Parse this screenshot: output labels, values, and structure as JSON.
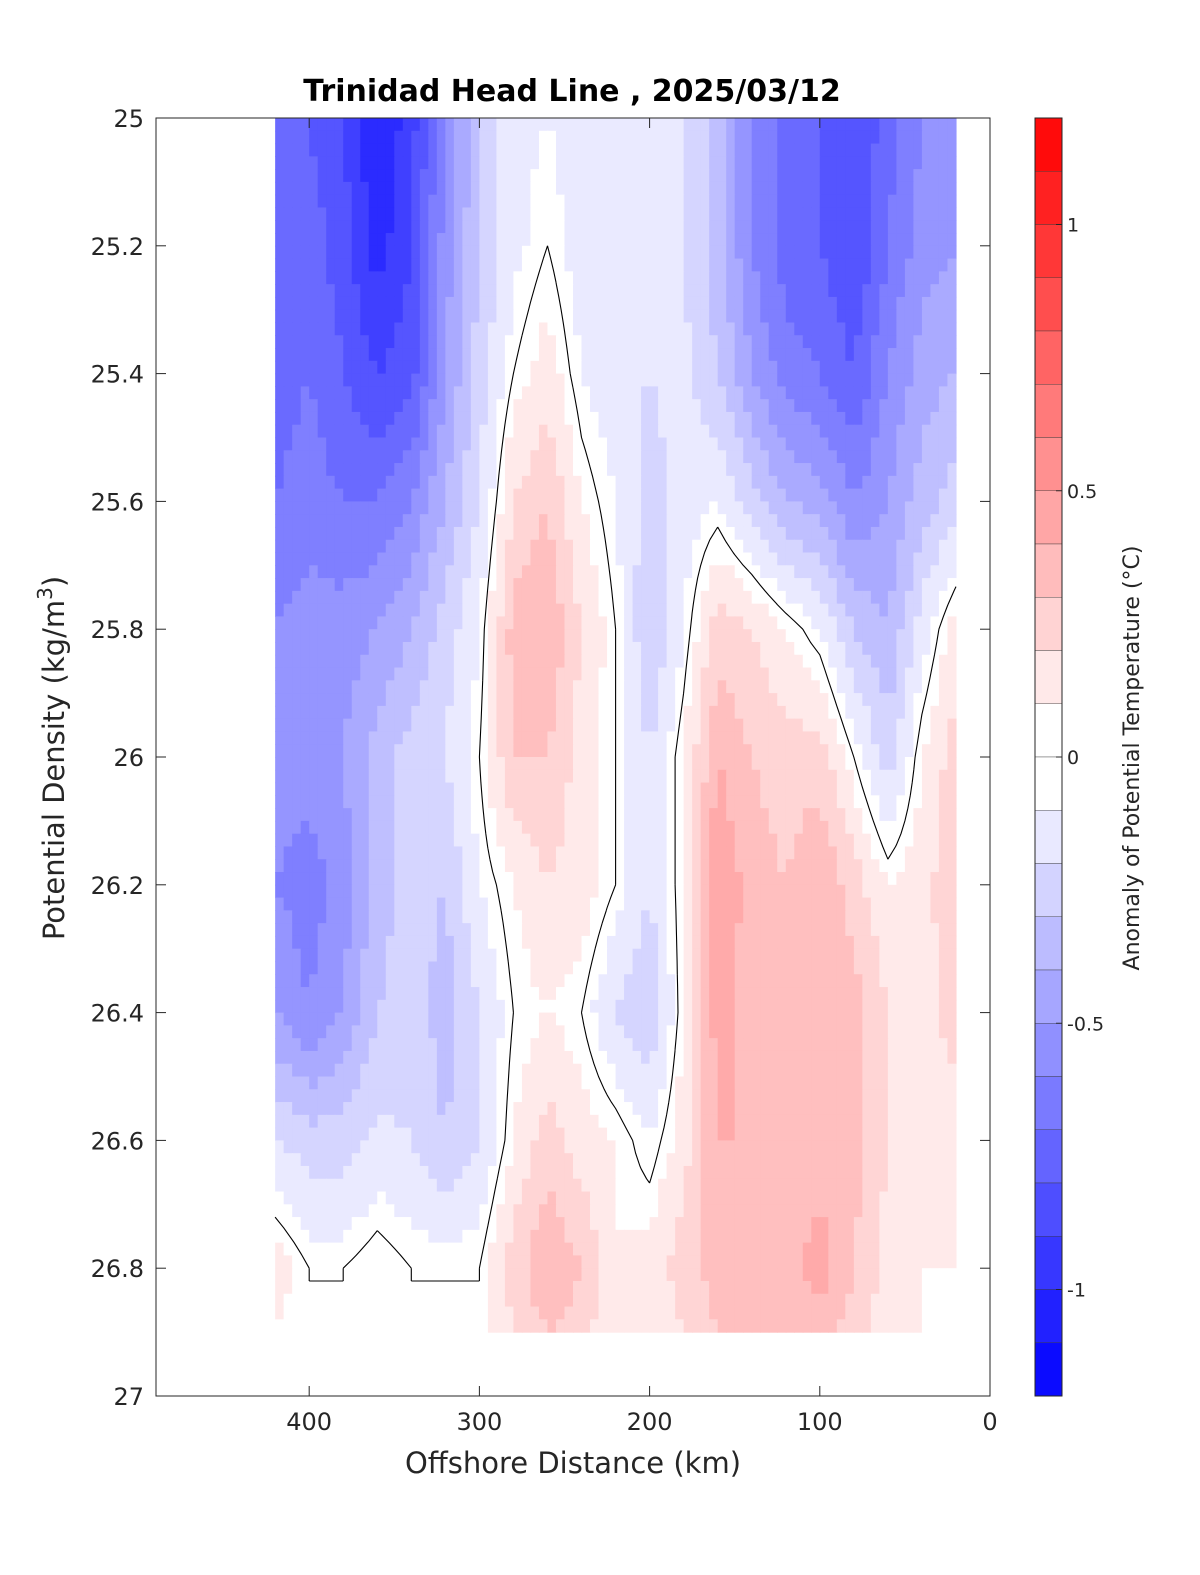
{
  "chart_data": {
    "type": "heatmap",
    "subtype": "filled-contour",
    "title": "Trinidad Head Line , 2025/03/12",
    "xlabel": "Offshore Distance (km)",
    "ylabel_main": "Potential Density (kg/m",
    "ylabel_sup": "3",
    "ylabel_close": ")",
    "xlim": [
      490,
      0
    ],
    "x_reversed": true,
    "xticks": [
      400,
      300,
      200,
      100,
      0
    ],
    "ylim": [
      25,
      27
    ],
    "y_reversed": true,
    "yticks": [
      "25",
      "25.2",
      "25.4",
      "25.6",
      "25.8",
      "26",
      "26.2",
      "26.4",
      "26.6",
      "26.8",
      "27"
    ],
    "data_extent": {
      "x": [
        420,
        20
      ],
      "y": [
        25,
        26.9
      ]
    },
    "zero_contour_color": "#000000",
    "colorbar": {
      "label": "Anomaly of Potential Temperature (°C)",
      "range": [
        -1.2,
        1.2
      ],
      "step": 0.1,
      "ticks": [
        {
          "value": 1,
          "label": "1"
        },
        {
          "value": 0.5,
          "label": "0.5"
        },
        {
          "value": 0,
          "label": "0"
        },
        {
          "value": -0.5,
          "label": "-0.5"
        },
        {
          "value": -1,
          "label": "-1"
        }
      ],
      "cold_color": "#0000ff",
      "warm_color": "#ff0000",
      "neutral_color": "#ffffff"
    },
    "grid_x": [
      420,
      400,
      380,
      360,
      340,
      320,
      300,
      280,
      260,
      240,
      220,
      200,
      180,
      160,
      140,
      120,
      100,
      80,
      60,
      40,
      20
    ],
    "grid_y": [
      25.0,
      25.2,
      25.4,
      25.6,
      25.8,
      26.0,
      26.2,
      26.4,
      26.6,
      26.8,
      26.9
    ],
    "values": [
      [
        -0.75,
        -0.75,
        -0.85,
        -1.05,
        -0.9,
        -0.55,
        -0.25,
        -0.08,
        -0.05,
        -0.1,
        -0.15,
        -0.15,
        -0.15,
        -0.3,
        -0.55,
        -0.7,
        -0.75,
        -0.85,
        -0.7,
        -0.55,
        -0.5
      ],
      [
        -0.75,
        -0.7,
        -0.8,
        -1.0,
        -0.85,
        -0.5,
        -0.25,
        -0.08,
        0.0,
        -0.1,
        -0.15,
        -0.15,
        -0.15,
        -0.3,
        -0.55,
        -0.7,
        -0.75,
        -0.85,
        -0.65,
        -0.5,
        -0.45
      ],
      [
        -0.7,
        -0.65,
        -0.75,
        -0.85,
        -0.8,
        -0.45,
        -0.2,
        0.0,
        0.1,
        -0.05,
        -0.12,
        -0.15,
        -0.12,
        -0.25,
        -0.45,
        -0.6,
        -0.65,
        -0.75,
        -0.55,
        -0.4,
        -0.35
      ],
      [
        -0.65,
        -0.6,
        -0.65,
        -0.65,
        -0.55,
        -0.35,
        -0.15,
        0.15,
        0.25,
        0.05,
        -0.05,
        -0.2,
        -0.1,
        -0.05,
        -0.2,
        -0.35,
        -0.4,
        -0.55,
        -0.45,
        -0.3,
        -0.2
      ],
      [
        -0.55,
        -0.5,
        -0.5,
        -0.45,
        -0.35,
        -0.2,
        -0.05,
        0.3,
        0.35,
        0.15,
        0.0,
        -0.25,
        -0.05,
        0.2,
        0.15,
        0.05,
        -0.05,
        -0.25,
        -0.35,
        -0.1,
        0.1
      ],
      [
        -0.5,
        -0.5,
        -0.45,
        -0.3,
        -0.2,
        -0.15,
        0.0,
        0.25,
        0.25,
        0.1,
        0.0,
        -0.15,
        0.05,
        0.35,
        0.25,
        0.2,
        0.2,
        0.0,
        -0.2,
        0.05,
        0.2
      ],
      [
        -0.55,
        -0.6,
        -0.5,
        -0.3,
        -0.2,
        -0.25,
        -0.05,
        0.05,
        0.15,
        0.1,
        0.0,
        -0.15,
        0.05,
        0.45,
        0.3,
        0.25,
        0.35,
        0.2,
        0.05,
        0.1,
        0.25
      ],
      [
        -0.45,
        -0.55,
        -0.45,
        -0.25,
        -0.2,
        -0.3,
        -0.15,
        0.0,
        0.05,
        0.0,
        -0.15,
        -0.25,
        0.05,
        0.4,
        0.3,
        0.25,
        0.35,
        0.3,
        0.15,
        0.1,
        0.2
      ],
      [
        -0.15,
        -0.2,
        -0.2,
        -0.12,
        -0.15,
        -0.25,
        -0.15,
        0.05,
        0.2,
        0.1,
        0.05,
        -0.05,
        0.1,
        0.35,
        0.35,
        0.3,
        0.3,
        0.3,
        0.15,
        0.05,
        0.1
      ],
      [
        0.1,
        0.0,
        0.0,
        0.05,
        0.0,
        0.0,
        0.0,
        0.2,
        0.35,
        0.25,
        0.05,
        0.1,
        0.2,
        0.3,
        0.35,
        0.3,
        0.4,
        0.25,
        0.1,
        0.05,
        0.05
      ],
      [
        0.05,
        0.0,
        0.0,
        0.0,
        0.0,
        0.0,
        0.0,
        0.15,
        0.25,
        0.2,
        0.05,
        0.05,
        0.15,
        0.25,
        0.3,
        0.25,
        0.3,
        0.2,
        0.1,
        0.05,
        0.0
      ]
    ]
  }
}
